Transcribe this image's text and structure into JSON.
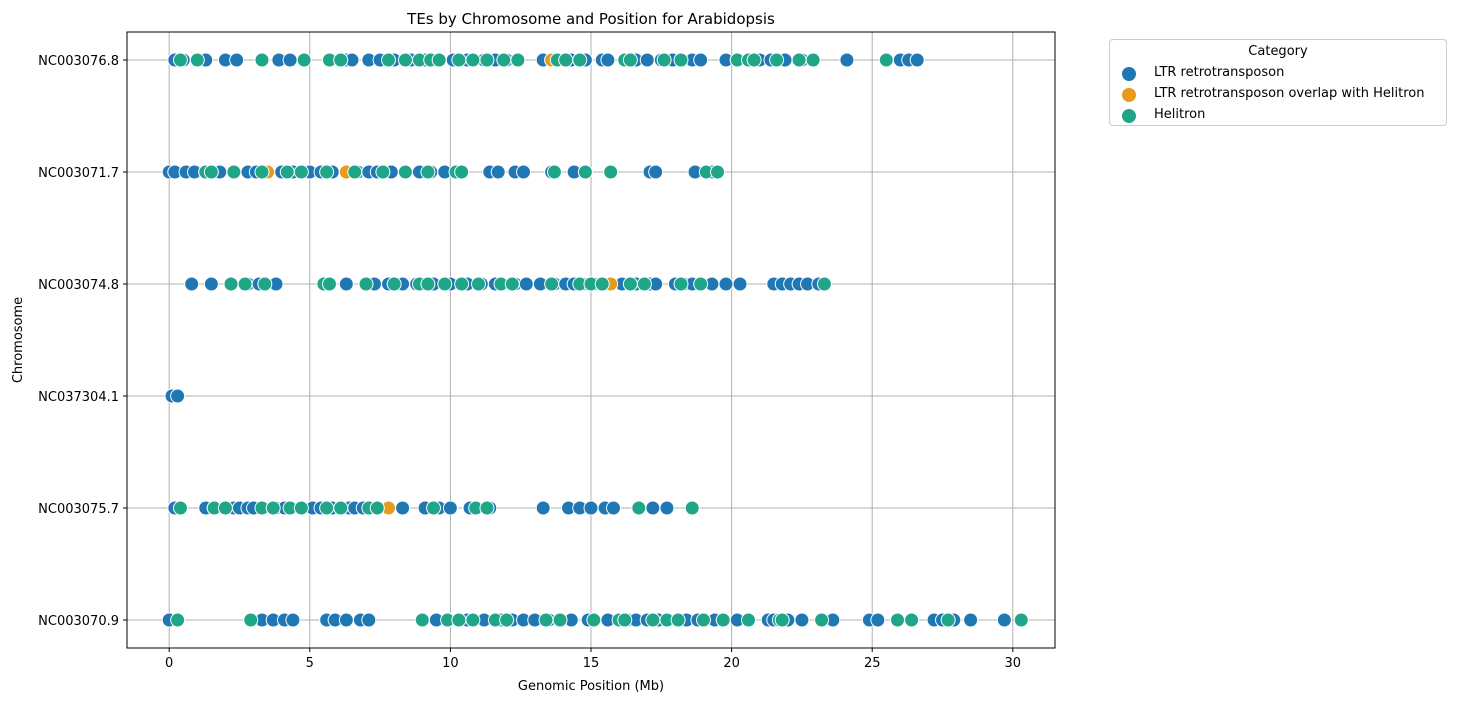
{
  "chart_data": {
    "type": "scatter",
    "title": "TEs by Chromosome and Position for Arabidopsis",
    "xlabel": "Genomic Position (Mb)",
    "ylabel": "Chromosome",
    "xlim": [
      -1.5,
      31.5
    ],
    "xticks": [
      0,
      5,
      10,
      15,
      20,
      25,
      30
    ],
    "categories": [
      "NC003076.8",
      "NC003071.7",
      "NC003074.8",
      "NC037304.1",
      "NC003075.7",
      "NC003070.9"
    ],
    "grid": true,
    "legend": {
      "title": "Category",
      "placement": "outside-top-right"
    },
    "series": [
      {
        "name": "LTR retrotransposon",
        "color": "#1f77b4",
        "points": {
          "NC003076.8": [
            0.2,
            0.5,
            1.3,
            2,
            2.4,
            3.9,
            4.3,
            5.7,
            6.3,
            6.5,
            7.1,
            7.5,
            8,
            8.6,
            9.1,
            9.6,
            10.1,
            10.6,
            11.2,
            11.6,
            12,
            12.4,
            13.3,
            13.6,
            14.3,
            14.8,
            15.4,
            15.6,
            16.6,
            17,
            17.5,
            17.9,
            18.6,
            18.9,
            19.8,
            20.2,
            21,
            21.4,
            21.9,
            22.5,
            24.1,
            26,
            26.3,
            26.6
          ],
          "NC003071.7": [
            0,
            0.2,
            0.6,
            0.9,
            1.3,
            1.8,
            2.3,
            2.8,
            3.1,
            3.5,
            4,
            4.4,
            5,
            5.4,
            5.8,
            6.3,
            6.7,
            7.1,
            7.4,
            7.9,
            8.4,
            8.9,
            9.3,
            9.8,
            10.3,
            11.4,
            11.7,
            12.3,
            12.6,
            13.6,
            14.4,
            14.8,
            17.1,
            17.3,
            18.7,
            19.3
          ],
          "NC003074.8": [
            0.8,
            1.5,
            2.8,
            3.2,
            3.8,
            5.6,
            6.3,
            7.3,
            7.8,
            8.3,
            8.8,
            9.4,
            10,
            10.6,
            11.1,
            11.6,
            12.3,
            12.7,
            13.2,
            13.7,
            14.1,
            14.4,
            14.7,
            15.1,
            15.7,
            16.1,
            16.6,
            17.1,
            17.3,
            18,
            18.3,
            18.6,
            19.3,
            19.8,
            20.3,
            21.5,
            21.8,
            22.1,
            22.4,
            22.7,
            23.1
          ],
          "NC037304.1": [
            0.1,
            0.3
          ],
          "NC003075.7": [
            0.2,
            1.3,
            1.6,
            2.3,
            2.5,
            2.8,
            3,
            3.8,
            4.1,
            4.7,
            5.1,
            5.4,
            5.8,
            6.4,
            6.6,
            6.9,
            7.3,
            8.3,
            9.1,
            9.6,
            10,
            10.7,
            11.4,
            13.3,
            14.2,
            14.6,
            15,
            15.5,
            15.8,
            17.2,
            17.7
          ],
          "NC003070.9": [
            0,
            3.3,
            3.7,
            4.1,
            4.4,
            5.6,
            5.9,
            6.3,
            6.8,
            7.1,
            9.5,
            10.6,
            11.2,
            11.8,
            12.2,
            12.6,
            13,
            13.5,
            14.3,
            14.9,
            15.6,
            16.3,
            16.6,
            17,
            17.4,
            18.4,
            18.8,
            19.4,
            20.2,
            21.3,
            21.5,
            22,
            22.5,
            23.6,
            24.9,
            25.2,
            27.2,
            27.5,
            27.9,
            28.5,
            29.7
          ]
        }
      },
      {
        "name": "LTR retrotransposon overlap with Helitron",
        "color": "#e69a1e",
        "points": {
          "NC003076.8": [
            13.6
          ],
          "NC003071.7": [
            3.5,
            6.3
          ],
          "NC003074.8": [
            15.7
          ],
          "NC037304.1": [],
          "NC003075.7": [
            7.8
          ],
          "NC003070.9": []
        }
      },
      {
        "name": "Helitron",
        "color": "#1fa688",
        "points": {
          "NC003076.8": [
            0.4,
            1,
            3.3,
            4.8,
            5.7,
            6.1,
            7.8,
            8.4,
            8.9,
            9.3,
            9.6,
            10.3,
            10.8,
            11.3,
            11.9,
            12.4,
            13.8,
            14.1,
            14.6,
            16.2,
            16.4,
            17.6,
            18.2,
            20.2,
            20.6,
            20.8,
            21.6,
            22.4,
            22.9,
            25.5
          ],
          "NC003071.7": [
            1.3,
            1.5,
            2.3,
            3.3,
            4.2,
            4.7,
            5.6,
            6.6,
            7.6,
            8.4,
            9.2,
            10.2,
            10.4,
            13.7,
            14.8,
            15.7,
            19.1,
            19.5
          ],
          "NC003074.8": [
            2.2,
            2.7,
            3.4,
            5.5,
            5.7,
            7,
            8,
            8.9,
            9.2,
            9.8,
            10.4,
            11,
            11.8,
            12.2,
            13.6,
            14.6,
            15,
            15.4,
            16.4,
            16.9,
            18.2,
            18.9,
            23.3
          ],
          "NC037304.1": [],
          "NC003075.7": [
            0.4,
            1.6,
            2,
            3.3,
            3.7,
            4.3,
            4.7,
            5.6,
            6.1,
            7.1,
            7.4,
            9.4,
            10.9,
            11.3,
            16.7,
            18.6
          ],
          "NC003070.9": [
            0.3,
            2.9,
            9,
            9.9,
            10.3,
            10.8,
            11.6,
            12,
            13.4,
            13.9,
            15.1,
            16,
            16.2,
            17.2,
            17.7,
            18.1,
            19,
            19.7,
            20.6,
            21.7,
            21.8,
            23.2,
            25.9,
            26.4,
            27.7,
            30.3
          ]
        }
      }
    ]
  }
}
